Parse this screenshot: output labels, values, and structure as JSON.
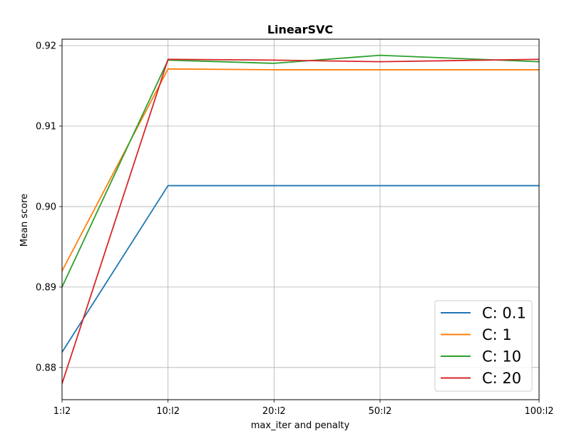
{
  "chart_data": {
    "type": "line",
    "title": "LinearSVC",
    "xlabel": "max_iter and penalty",
    "ylabel": "Mean score",
    "categories": [
      "1:l2",
      "10:l2",
      "20:l2",
      "50:l2",
      "100:l2"
    ],
    "ylim": [
      0.876,
      0.9208
    ],
    "yticks": [
      0.88,
      0.89,
      0.9,
      0.91,
      0.92
    ],
    "ytick_labels": [
      "0.88",
      "0.89",
      "0.90",
      "0.91",
      "0.92"
    ],
    "grid": true,
    "legend_position": "bottom-right",
    "series": [
      {
        "name": "C: 0.1",
        "color": "#1f77b4",
        "values": [
          0.8819,
          0.9026,
          0.9026,
          0.9026,
          0.9026
        ]
      },
      {
        "name": "C: 1",
        "color": "#ff7f0e",
        "values": [
          0.892,
          0.9171,
          0.917,
          0.917,
          0.917
        ]
      },
      {
        "name": "C: 10",
        "color": "#2ca02c",
        "values": [
          0.89,
          0.9182,
          0.9178,
          0.9188,
          0.918
        ]
      },
      {
        "name": "C: 20",
        "color": "#d62728",
        "values": [
          0.878,
          0.9183,
          0.9182,
          0.918,
          0.9183
        ]
      }
    ]
  }
}
